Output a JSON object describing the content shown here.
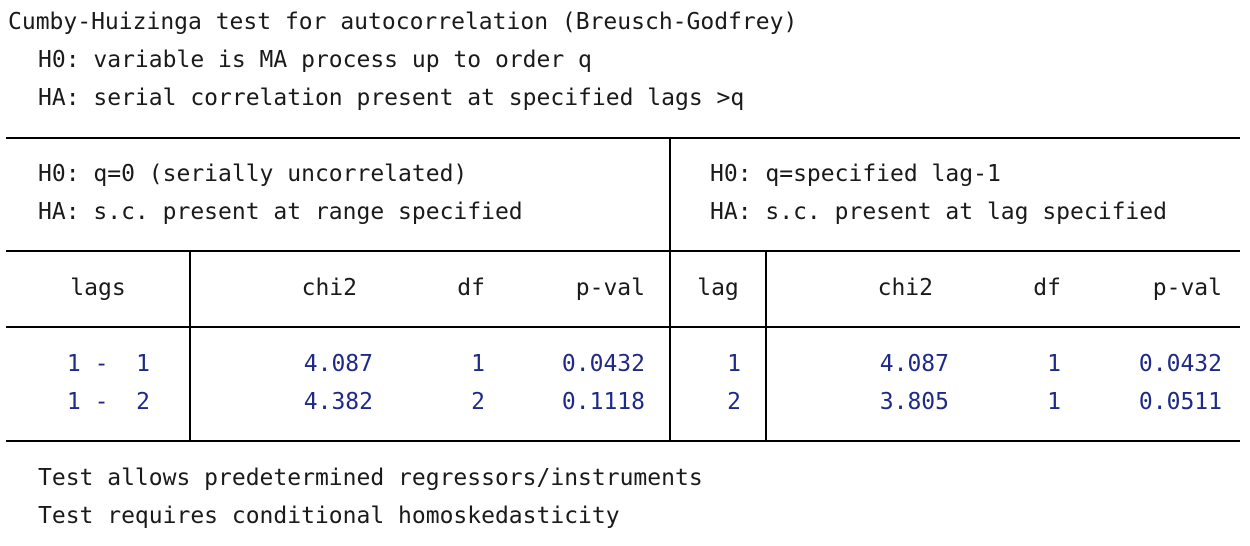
{
  "title": "Cumby-Huizinga test for autocorrelation (Breusch-Godfrey)",
  "hypotheses": {
    "h0": "H0: variable is MA process up to order q",
    "ha": "HA: serial correlation present at specified lags >q"
  },
  "panels": {
    "left": {
      "h0": "H0: q=0 (serially uncorrelated)",
      "ha": "HA: s.c. present at range specified"
    },
    "right": {
      "h0": "H0: q=specified lag-1",
      "ha": "HA: s.c. present at lag specified"
    }
  },
  "columns": {
    "lags": "lags",
    "chi2_left": "chi2",
    "df_left": "df",
    "pval_left": "p-val",
    "lag": "lag",
    "chi2_right": "chi2",
    "df_right": "df",
    "pval_right": "p-val"
  },
  "rows": [
    {
      "lags": "1 -  1",
      "chi2_left": "4.087",
      "df_left": "1",
      "pval_left": "0.0432",
      "lag": "1",
      "chi2_right": "4.087",
      "df_right": "1",
      "pval_right": "0.0432"
    },
    {
      "lags": "1 -  2",
      "chi2_left": "4.382",
      "df_left": "2",
      "pval_left": "0.1118",
      "lag": "2",
      "chi2_right": "3.805",
      "df_right": "1",
      "pval_right": "0.0511"
    }
  ],
  "notes": [
    "Test allows predetermined regressors/instruments",
    "Test requires conditional homoskedasticity"
  ],
  "colors": {
    "numbers": "#1f2a86",
    "text": "#1a1a1a",
    "rules": "#000000"
  }
}
